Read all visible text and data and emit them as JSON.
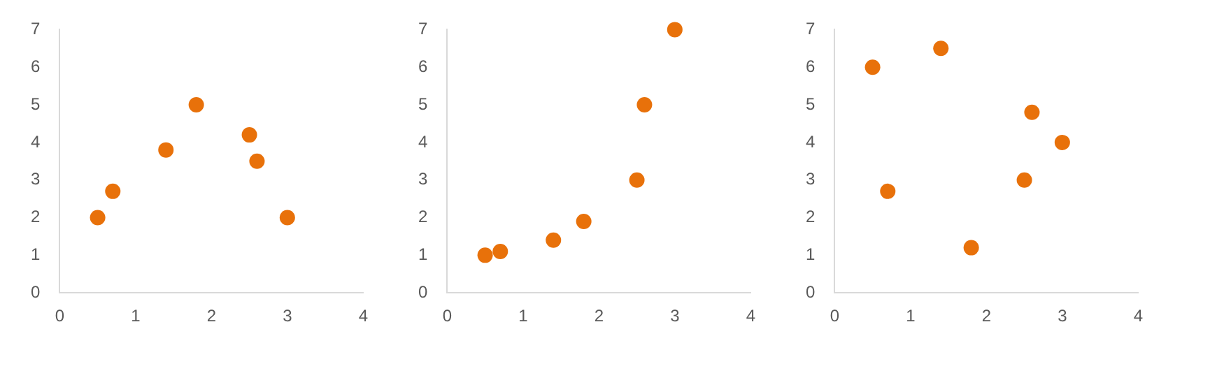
{
  "chart_data": [
    {
      "type": "scatter",
      "x": [
        0.5,
        0.7,
        1.4,
        1.8,
        2.5,
        2.6,
        3
      ],
      "values": [
        2,
        2.7,
        3.8,
        5,
        4.2,
        3.5,
        2
      ],
      "color": "#e8710a",
      "xlim": [
        0,
        4
      ],
      "xticks": [
        0,
        1,
        2,
        3,
        4
      ],
      "ylim": [
        0,
        7
      ],
      "yticks": [
        0,
        1,
        2,
        3,
        4,
        5,
        6,
        7
      ],
      "marker": "circle",
      "grid": false
    },
    {
      "type": "scatter",
      "x": [
        0.5,
        0.7,
        1.4,
        1.8,
        2.5,
        2.6,
        3
      ],
      "values": [
        1,
        1.1,
        1.4,
        1.9,
        3,
        5,
        7
      ],
      "color": "#e8710a",
      "xlim": [
        0,
        4
      ],
      "xticks": [
        0,
        1,
        2,
        3,
        4
      ],
      "ylim": [
        0,
        7
      ],
      "yticks": [
        0,
        1,
        2,
        3,
        4,
        5,
        6,
        7
      ],
      "marker": "circle",
      "grid": false
    },
    {
      "type": "scatter",
      "x": [
        0.5,
        0.7,
        1.4,
        1.8,
        2.5,
        2.6,
        3
      ],
      "values": [
        6,
        2.7,
        6.5,
        1.2,
        3,
        4.8,
        4
      ],
      "color": "#e8710a",
      "xlim": [
        0,
        4
      ],
      "xticks": [
        0,
        1,
        2,
        3,
        4
      ],
      "ylim": [
        0,
        7
      ],
      "yticks": [
        0,
        1,
        2,
        3,
        4,
        5,
        6,
        7
      ],
      "marker": "circle",
      "grid": false
    }
  ]
}
